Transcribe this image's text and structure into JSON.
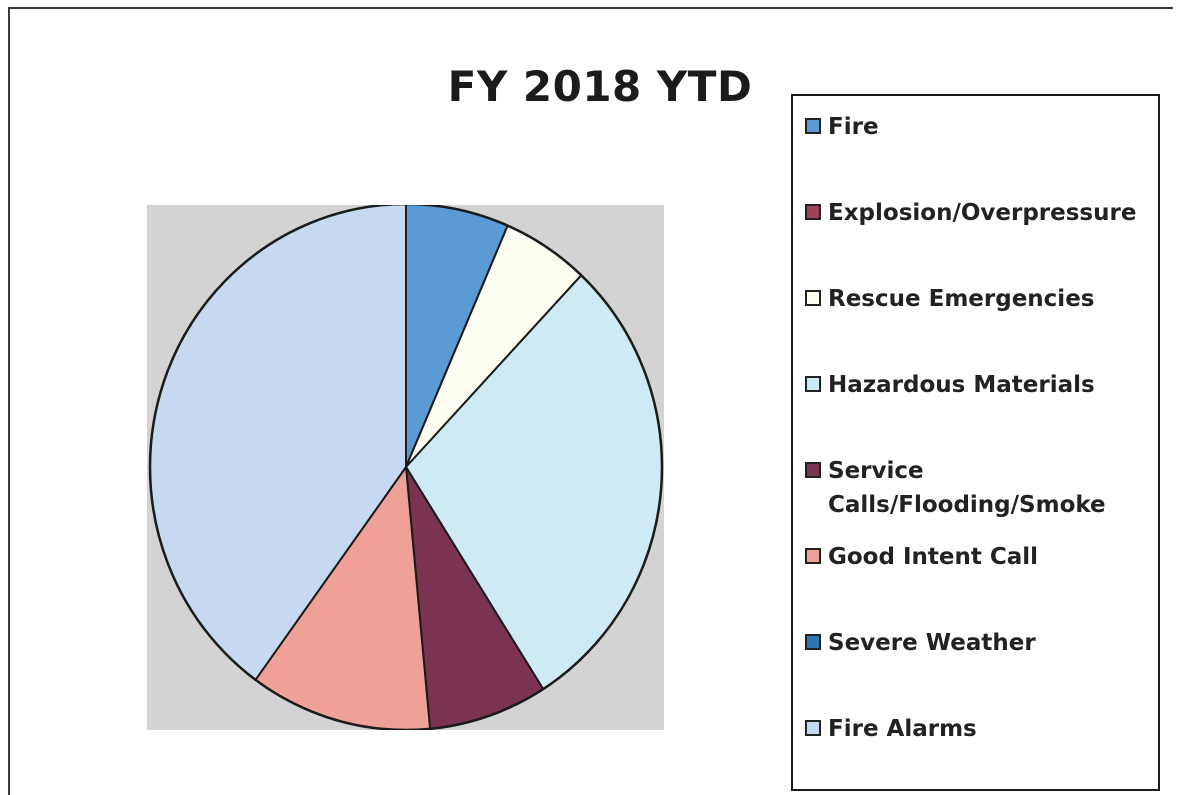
{
  "chart_data": {
    "type": "pie",
    "title": "FY 2018 YTD",
    "legend_position": "right",
    "slices": [
      {
        "label": "Fire",
        "value": 6.5,
        "color": "#5b9bd5"
      },
      {
        "label": "Explosion/Overpressure",
        "value": 0,
        "color": "#a3415a"
      },
      {
        "label": "Rescue Emergencies",
        "value": 5.5,
        "color": "#fdfdf1"
      },
      {
        "label": "Hazardous Materials",
        "value": 29,
        "color": "#cdeaf5"
      },
      {
        "label": "Service Calls/Flooding/Smoke",
        "value": 7.5,
        "color": "#7a3350"
      },
      {
        "label": "Good Intent Call",
        "value": 11.5,
        "color": "#f0a197"
      },
      {
        "label": "Severe Weather",
        "value": 0,
        "color": "#2e75b6"
      },
      {
        "label": "Fire Alarms",
        "value": 40,
        "color": "#c6d9f1"
      }
    ]
  }
}
